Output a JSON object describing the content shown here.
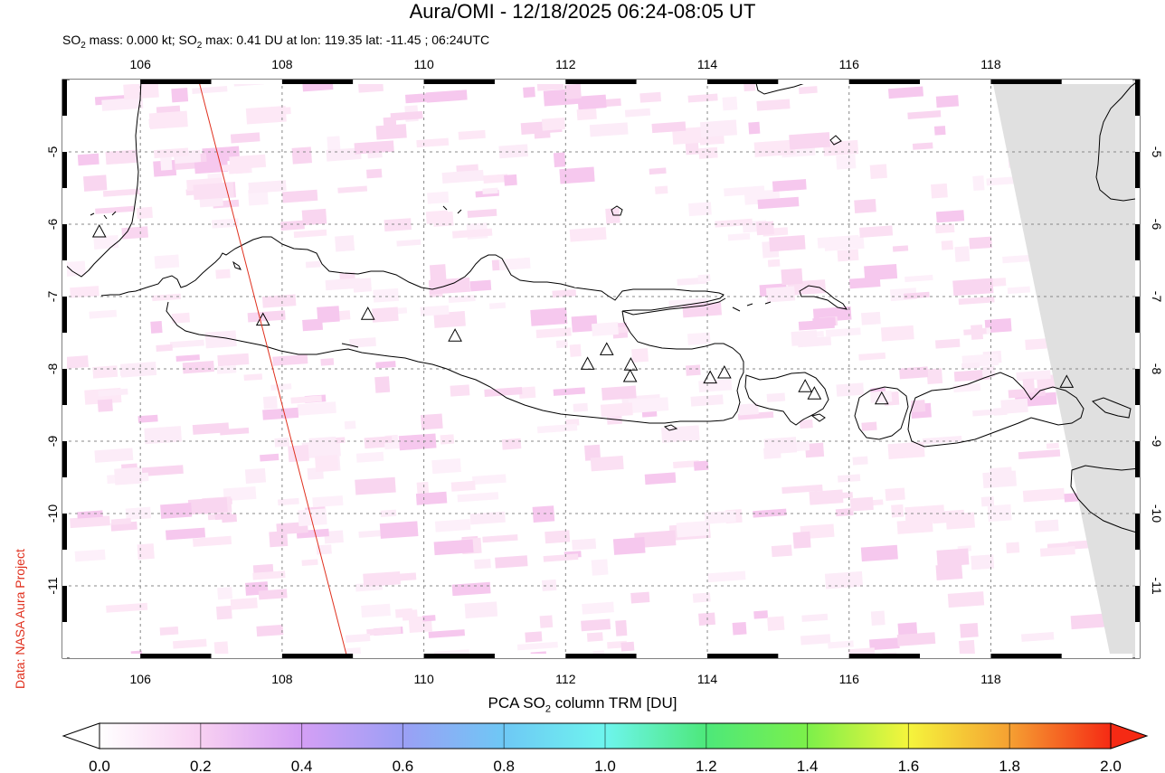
{
  "title": "Aura/OMI - 12/18/2025 06:24-08:05 UT",
  "subtitle": {
    "prefix": "SO",
    "sub1": "2",
    "mid": " mass: 0.000 kt; SO",
    "sub2": "2",
    "rest": " max: 0.41 DU at lon: 119.35 lat: -11.45 ; 06:24UTC"
  },
  "credit": "Data: NASA Aura Project",
  "map": {
    "lon_range": [
      104.9,
      120.1
    ],
    "lat_range": [
      -12.0,
      -4.0
    ],
    "lon_ticks": [
      106,
      108,
      110,
      112,
      114,
      116,
      118
    ],
    "lon_tick_labels": [
      "106",
      "108",
      "110",
      "112",
      "114",
      "116",
      "118"
    ],
    "lat_ticks": [
      -5,
      -6,
      -7,
      -8,
      -9,
      -10,
      -11
    ],
    "lat_tick_labels": [
      "-5",
      "-6",
      "-7",
      "-8",
      "-9",
      "-10",
      "-11"
    ],
    "grid": "dashed",
    "volcanoes": [
      {
        "lon": 105.42,
        "lat": -6.1
      },
      {
        "lon": 107.73,
        "lat": -7.32
      },
      {
        "lon": 109.21,
        "lat": -7.24
      },
      {
        "lon": 110.44,
        "lat": -7.54
      },
      {
        "lon": 112.31,
        "lat": -7.93
      },
      {
        "lon": 112.58,
        "lat": -7.73
      },
      {
        "lon": 112.92,
        "lat": -7.94
      },
      {
        "lon": 112.91,
        "lat": -8.1
      },
      {
        "lon": 114.04,
        "lat": -8.12
      },
      {
        "lon": 114.24,
        "lat": -8.05
      },
      {
        "lon": 115.38,
        "lat": -8.24
      },
      {
        "lon": 115.51,
        "lat": -8.34
      },
      {
        "lon": 116.46,
        "lat": -8.41
      },
      {
        "lon": 119.07,
        "lat": -8.18
      }
    ],
    "orbit_track": {
      "color": "#e0301e",
      "start": {
        "lon": 106.82,
        "lat": -4.0
      },
      "end": {
        "lon": 108.92,
        "lat": -12.0
      }
    },
    "no_data_color": "#e0e0e0"
  },
  "colorbar": {
    "label_prefix": "PCA SO",
    "label_sub": "2",
    "label_suffix": " column TRM [DU]",
    "min": 0.0,
    "max": 2.0,
    "ticks": [
      "0.0",
      "0.2",
      "0.4",
      "0.6",
      "0.8",
      "1.0",
      "1.2",
      "1.4",
      "1.6",
      "1.8",
      "2.0"
    ],
    "stops": [
      "#ffffff",
      "#f8d0f2",
      "#d49ff5",
      "#9b9ff5",
      "#6ec8f5",
      "#6ef5ee",
      "#4de87a",
      "#7cf04a",
      "#f5f53c",
      "#f5a032",
      "#f52a14"
    ]
  }
}
